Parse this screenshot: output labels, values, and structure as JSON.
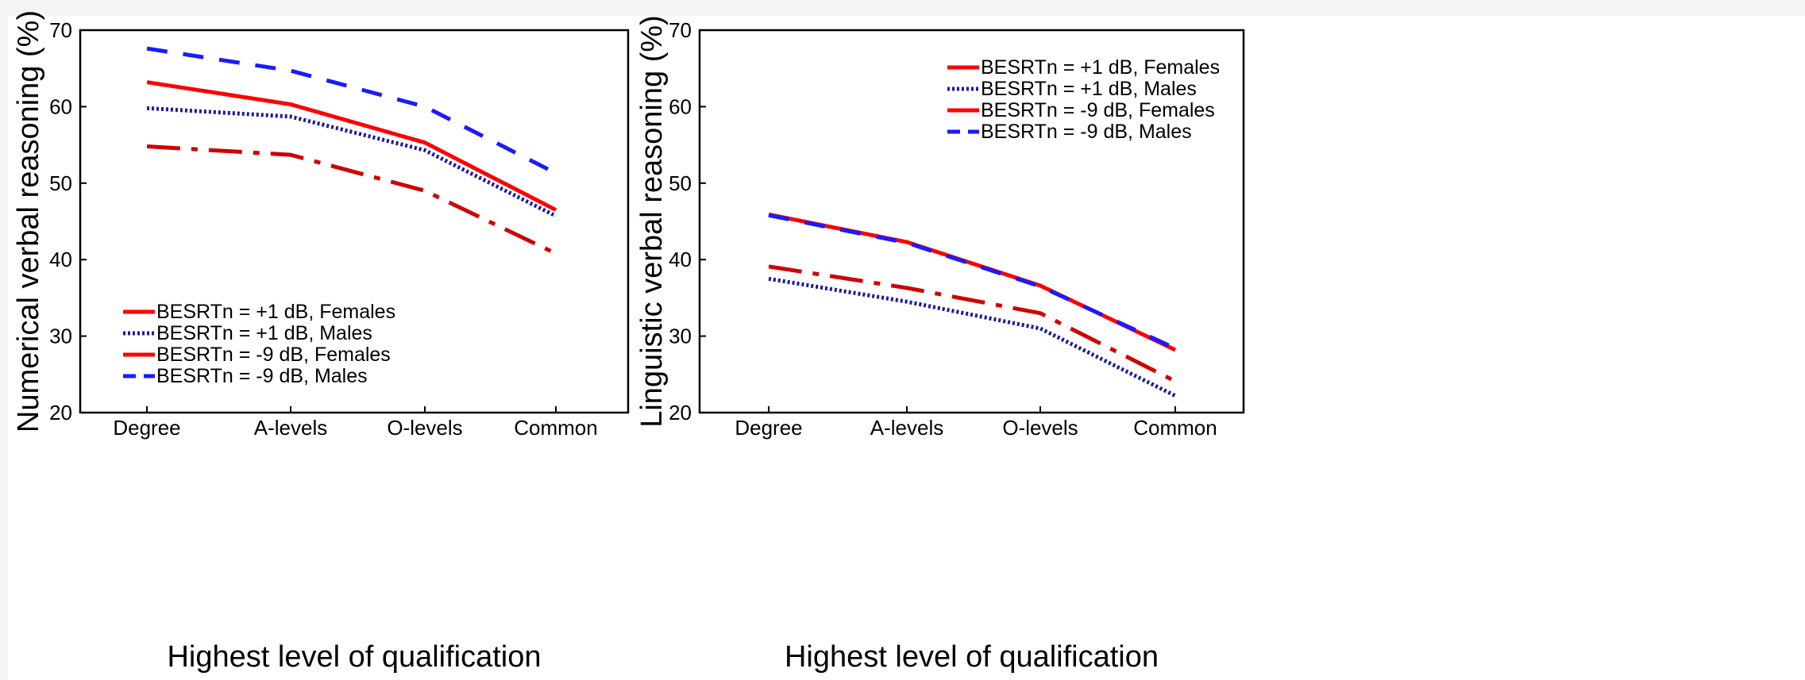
{
  "chart_data": [
    {
      "type": "line",
      "title": "",
      "xlabel": "Highest level of qualification",
      "ylabel": "Numerical verbal reasoning (%)",
      "categories": [
        "Degree",
        "A-levels",
        "O-levels",
        "Common"
      ],
      "ylim": [
        20,
        70
      ],
      "yticks": [
        "70",
        "60",
        "50",
        "40",
        "30",
        "20"
      ],
      "legend_position": "bottom-left",
      "grid": false,
      "series": [
        {
          "name": "BESRTn = +1 dB, Females",
          "values": [
            63.2,
            60.3,
            55.3,
            46.5
          ],
          "color": "#ff0000",
          "style": "solid"
        },
        {
          "name": "BESRTn = +1 dB, Males",
          "values": [
            59.8,
            58.7,
            54.3,
            45.7
          ],
          "color": "#1a1aa0",
          "style": "dotted"
        },
        {
          "name": "BESRTn = -9 dB, Females",
          "values": [
            54.8,
            53.7,
            49.0,
            40.8
          ],
          "color": "#d10000",
          "style": "longdash"
        },
        {
          "name": "BESRTn = -9 dB, Males",
          "values": [
            67.6,
            64.7,
            60.0,
            51.3
          ],
          "color": "#1a1aff",
          "style": "dashed"
        }
      ],
      "legend_styles": [
        {
          "color": "#ff0000",
          "style": "solid"
        },
        {
          "color": "#1a1aa0",
          "style": "dotted"
        },
        {
          "color": "#ff0000",
          "style": "solid"
        },
        {
          "color": "#1a1aff",
          "style": "dashed"
        }
      ]
    },
    {
      "type": "line",
      "title": "",
      "xlabel": "Highest level of qualification",
      "ylabel": "Linguistic verbal reasoning (%)",
      "categories": [
        "Degree",
        "A-levels",
        "O-levels",
        "Common"
      ],
      "ylim": [
        20,
        70
      ],
      "yticks": [
        "70",
        "60",
        "50",
        "40",
        "30",
        "20"
      ],
      "legend_position": "top-right",
      "grid": false,
      "series": [
        {
          "name": "BESRTn = +1 dB, Females",
          "values": [
            45.9,
            42.3,
            36.6,
            28.2
          ],
          "color": "#ff0000",
          "style": "solid"
        },
        {
          "name": "BESRTn = +1 dB, Males",
          "values": [
            37.5,
            34.5,
            31.0,
            22.2
          ],
          "color": "#1a1aa0",
          "style": "dotted"
        },
        {
          "name": "BESRTn = -9 dB, Females",
          "values": [
            39.1,
            36.3,
            33.0,
            24.1
          ],
          "color": "#d10000",
          "style": "longdash"
        },
        {
          "name": "BESRTn = -9 dB, Males",
          "values": [
            45.8,
            42.2,
            36.5,
            28.4
          ],
          "color": "#1a1aff",
          "style": "dashed"
        }
      ],
      "legend_styles": [
        {
          "color": "#ff0000",
          "style": "solid"
        },
        {
          "color": "#1a1aa0",
          "style": "dotted"
        },
        {
          "color": "#ff0000",
          "style": "solid"
        },
        {
          "color": "#1a1aff",
          "style": "dashed"
        }
      ]
    }
  ]
}
